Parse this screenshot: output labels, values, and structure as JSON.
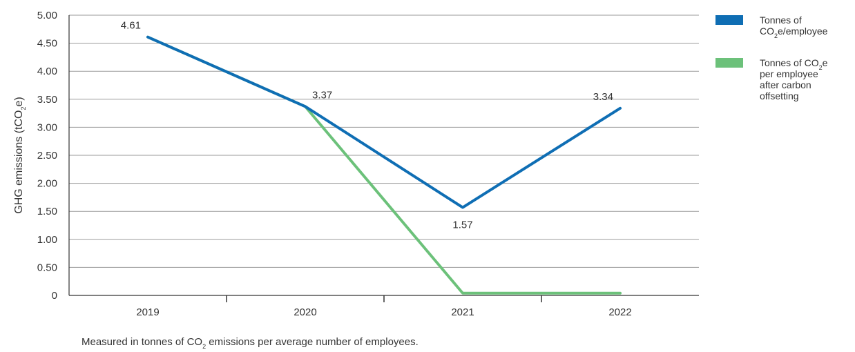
{
  "chart_data": {
    "type": "line",
    "categories": [
      "2019",
      "2020",
      "2021",
      "2022"
    ],
    "ylabel_parts": [
      "GHG emissions (tCO",
      "2",
      "e)"
    ],
    "ylim": [
      0,
      5
    ],
    "yticks": [
      {
        "value": 0,
        "label": "0"
      },
      {
        "value": 0.5,
        "label": "0.50"
      },
      {
        "value": 1.0,
        "label": "1.00"
      },
      {
        "value": 1.5,
        "label": "1.50"
      },
      {
        "value": 2.0,
        "label": "2.00"
      },
      {
        "value": 2.5,
        "label": "2.50"
      },
      {
        "value": 3.0,
        "label": "3.00"
      },
      {
        "value": 3.5,
        "label": "3.50"
      },
      {
        "value": 4.0,
        "label": "4.00"
      },
      {
        "value": 4.5,
        "label": "4.50"
      },
      {
        "value": 5.0,
        "label": "5.00"
      }
    ],
    "grid": true,
    "legend_position": "right",
    "series": [
      {
        "id": "offset",
        "color": "#6cc17a",
        "values": [
          4.61,
          3.37,
          0.04,
          0.04
        ],
        "legend_lines": [
          [
            {
              "t": "Tonnes of CO"
            },
            {
              "t": "2",
              "sub": true
            },
            {
              "t": "e"
            }
          ],
          [
            {
              "t": "per employee"
            }
          ],
          [
            {
              "t": "after carbon"
            }
          ],
          [
            {
              "t": "offsetting"
            }
          ]
        ]
      },
      {
        "id": "total",
        "color": "#0f6eb4",
        "values": [
          4.61,
          3.37,
          1.57,
          3.34
        ],
        "legend_lines": [
          [
            {
              "t": "Tonnes of"
            }
          ],
          [
            {
              "t": "CO"
            },
            {
              "t": "2",
              "sub": true
            },
            {
              "t": "e/employee"
            }
          ]
        ]
      }
    ],
    "data_labels": [
      {
        "index": 0,
        "text": "4.61",
        "position": "above-left"
      },
      {
        "index": 1,
        "text": "3.37",
        "position": "above-right"
      },
      {
        "index": 2,
        "text": "1.57",
        "position": "below"
      },
      {
        "index": 3,
        "text": "3.34",
        "position": "above-left"
      }
    ],
    "note_parts": [
      "Measured in tonnes of CO",
      "2",
      " emissions per average number of employees."
    ]
  }
}
